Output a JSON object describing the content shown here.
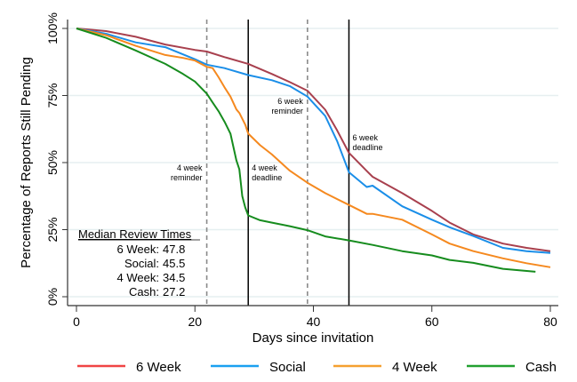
{
  "chart_data": {
    "type": "line",
    "title": "",
    "xlabel": "Days since invitation",
    "ylabel": "Percentage of Reports Still Pending",
    "xlim": [
      0,
      80
    ],
    "ylim": [
      0,
      100
    ],
    "x_ticks": [
      0,
      20,
      40,
      60,
      80
    ],
    "x_tick_labels": [
      "0",
      "20",
      "40",
      "60",
      "80"
    ],
    "y_ticks": [
      0,
      25,
      50,
      75,
      100
    ],
    "y_tick_labels": [
      "0%",
      "25%",
      "50%",
      "75%",
      "100%"
    ],
    "grid": true,
    "legend_position": "bottom",
    "series": [
      {
        "name": "6 Week",
        "color": "#a8404e",
        "legend_color": "#f04444",
        "points": [
          [
            0,
            100
          ],
          [
            5,
            99
          ],
          [
            10,
            96.9
          ],
          [
            15,
            94
          ],
          [
            20,
            92
          ],
          [
            22,
            91.4
          ],
          [
            25,
            89.3
          ],
          [
            29,
            86.8
          ],
          [
            33,
            83
          ],
          [
            36,
            80
          ],
          [
            39,
            76.8
          ],
          [
            42,
            69.7
          ],
          [
            44,
            62
          ],
          [
            46,
            53.6
          ],
          [
            49,
            46.9
          ],
          [
            50,
            44.7
          ],
          [
            55,
            38.6
          ],
          [
            60,
            32
          ],
          [
            63,
            27.6
          ],
          [
            67,
            23.2
          ],
          [
            72,
            19.8
          ],
          [
            76,
            18.2
          ],
          [
            80,
            17
          ]
        ]
      },
      {
        "name": "Social",
        "color": "#1a8ee8",
        "legend_color": "#1aa0f0",
        "points": [
          [
            0,
            100
          ],
          [
            5,
            98
          ],
          [
            10,
            94.8
          ],
          [
            15,
            93
          ],
          [
            20,
            88.5
          ],
          [
            22,
            86.5
          ],
          [
            25,
            85.2
          ],
          [
            29,
            82.6
          ],
          [
            33,
            80.7
          ],
          [
            36,
            78.5
          ],
          [
            39,
            74.6
          ],
          [
            42,
            67.4
          ],
          [
            44,
            58
          ],
          [
            46,
            46.4
          ],
          [
            49,
            40.9
          ],
          [
            50,
            41.4
          ],
          [
            55,
            33.7
          ],
          [
            60,
            28.7
          ],
          [
            63,
            25.9
          ],
          [
            67,
            22.6
          ],
          [
            72,
            18.2
          ],
          [
            76,
            17
          ],
          [
            80,
            16.3
          ]
        ]
      },
      {
        "name": "4 Week",
        "color": "#f5891f",
        "legend_color": "#f5a030",
        "points": [
          [
            0,
            100
          ],
          [
            5,
            97.5
          ],
          [
            10,
            93.5
          ],
          [
            15,
            90.1
          ],
          [
            18,
            89
          ],
          [
            20,
            88
          ],
          [
            22,
            85.7
          ],
          [
            23,
            85.2
          ],
          [
            24,
            81.8
          ],
          [
            25,
            78
          ],
          [
            26,
            74.6
          ],
          [
            27,
            69.8
          ],
          [
            27.5,
            68.5
          ],
          [
            28.5,
            64.1
          ],
          [
            29,
            60.8
          ],
          [
            31,
            56.5
          ],
          [
            33,
            53
          ],
          [
            36,
            47
          ],
          [
            39,
            42.5
          ],
          [
            42,
            38.6
          ],
          [
            46,
            34.2
          ],
          [
            49,
            30.9
          ],
          [
            50,
            30.9
          ],
          [
            55,
            28.7
          ],
          [
            60,
            23.2
          ],
          [
            63,
            19.8
          ],
          [
            67,
            17
          ],
          [
            72,
            14.3
          ],
          [
            76,
            12.5
          ],
          [
            80,
            11
          ]
        ]
      },
      {
        "name": "Cash",
        "color": "#168c1e",
        "legend_color": "#22a030",
        "points": [
          [
            0,
            100
          ],
          [
            5,
            96.5
          ],
          [
            10,
            91.8
          ],
          [
            15,
            86.8
          ],
          [
            18,
            83
          ],
          [
            20,
            80.2
          ],
          [
            22,
            75.7
          ],
          [
            23,
            72.4
          ],
          [
            24,
            69.1
          ],
          [
            25,
            65.2
          ],
          [
            26,
            60.8
          ],
          [
            27,
            50.8
          ],
          [
            27.5,
            47.5
          ],
          [
            28,
            37.5
          ],
          [
            28.5,
            33.2
          ],
          [
            29,
            30.3
          ],
          [
            31,
            28.5
          ],
          [
            33,
            27.6
          ],
          [
            36,
            26.3
          ],
          [
            39,
            24.8
          ],
          [
            42,
            22.5
          ],
          [
            46,
            21
          ],
          [
            50,
            19.3
          ],
          [
            55,
            17
          ],
          [
            60,
            15.4
          ],
          [
            63,
            13.7
          ],
          [
            67,
            12.6
          ],
          [
            72,
            10.4
          ],
          [
            77.5,
            9.3
          ]
        ]
      }
    ],
    "reference_lines": [
      {
        "day": 22,
        "style": "dashed",
        "label_lines": [
          "4 week",
          "reminder"
        ],
        "label_side": "left"
      },
      {
        "day": 29,
        "style": "solid",
        "label_lines": [
          "4 week",
          "deadline"
        ],
        "label_side": "right"
      },
      {
        "day": 39,
        "style": "dashed",
        "label_lines": [
          "6 week",
          "reminder"
        ],
        "label_side": "left"
      },
      {
        "day": 46,
        "style": "solid",
        "label_lines": [
          "6 week",
          "deadline"
        ],
        "label_side": "right"
      }
    ],
    "annotation_box": {
      "heading": "Median Review Times",
      "rows": [
        {
          "label": "6 Week",
          "value": "47.8"
        },
        {
          "label": "Social",
          "value": "45.5"
        },
        {
          "label": "4 Week",
          "value": "34.5"
        },
        {
          "label": "Cash",
          "value": "27.2"
        }
      ]
    }
  }
}
